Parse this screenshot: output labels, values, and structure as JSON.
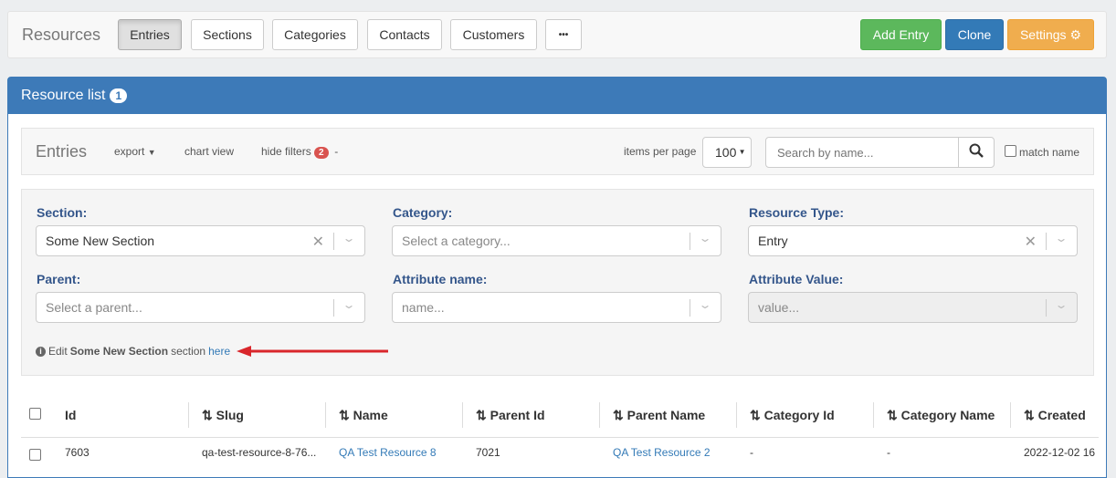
{
  "topbar": {
    "brand": "Resources",
    "tabs": [
      "Entries",
      "Sections",
      "Categories",
      "Contacts",
      "Customers",
      "•••"
    ],
    "active_tab": "Entries",
    "add_entry": "Add Entry",
    "clone": "Clone",
    "settings": "Settings",
    "settings_icon": "gear-icon"
  },
  "panel": {
    "title": "Resource list",
    "badge": "1"
  },
  "toolbar": {
    "title": "Entries",
    "export": "export",
    "chart_view": "chart view",
    "hide_filters": "hide filters",
    "filters_count": "2",
    "dash": "-",
    "items_per_page_label": "items per page",
    "items_per_page": "100",
    "search_placeholder": "Search by name...",
    "match_name": "match name"
  },
  "filters": {
    "section": {
      "label": "Section:",
      "value": "Some New Section"
    },
    "category": {
      "label": "Category:",
      "placeholder": "Select a category..."
    },
    "resource_type": {
      "label": "Resource Type:",
      "value": "Entry"
    },
    "parent": {
      "label": "Parent:",
      "placeholder": "Select a parent..."
    },
    "attribute_name": {
      "label": "Attribute name:",
      "placeholder": "name..."
    },
    "attribute_value": {
      "label": "Attribute Value:",
      "placeholder": "value..."
    },
    "hint": {
      "prefix": "Edit",
      "section": "Some New Section",
      "middle": "section",
      "link": "here"
    }
  },
  "table": {
    "columns": [
      "Id",
      "Slug",
      "Name",
      "Parent Id",
      "Parent Name",
      "Category Id",
      "Category Name",
      "Created"
    ],
    "rows": [
      {
        "id": "7603",
        "slug": "qa-test-resource-8-76...",
        "name": "QA Test Resource 8",
        "parent_id": "7021",
        "parent_name": "QA Test Resource 2",
        "category_id": "-",
        "category_name": "-",
        "created": "2022-12-02 16"
      }
    ]
  },
  "colors": {
    "primary": "#3d7ab8",
    "success": "#5cb85c",
    "warning": "#f0ad4e",
    "danger": "#d9534f",
    "arrow": "#d9262b"
  }
}
